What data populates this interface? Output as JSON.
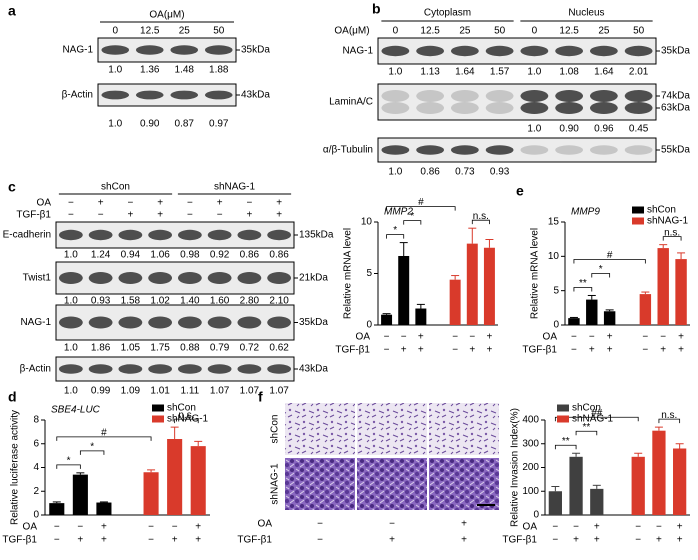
{
  "figure": {
    "a": {
      "label": "a",
      "treatment": "OA(μM)",
      "lanes": [
        "0",
        "12.5",
        "25",
        "50"
      ],
      "blots": [
        {
          "protein": "NAG-1",
          "sizes": [
            "35kDa"
          ],
          "quant": [
            "1.0",
            "1.36",
            "1.48",
            "1.88"
          ]
        },
        {
          "protein": "β-Actin",
          "sizes": [
            "43kDa"
          ],
          "quant": [
            "1.0",
            "0.90",
            "0.87",
            "0.97"
          ]
        }
      ]
    },
    "b": {
      "label": "b",
      "treatment": "OA(μM)",
      "fractions": [
        "Cytoplasm",
        "Nucleus"
      ],
      "lanes": [
        "0",
        "12.5",
        "25",
        "50",
        "0",
        "12.5",
        "25",
        "50"
      ],
      "blots": [
        {
          "protein": "NAG-1",
          "sizes": [
            "35kDa"
          ],
          "quant": [
            "1.0",
            "1.13",
            "1.64",
            "1.57",
            "1.0",
            "1.08",
            "1.64",
            "2.01"
          ]
        },
        {
          "protein": "LaminA/C",
          "sizes": [
            "74kDa",
            "63kDa"
          ],
          "quant": [
            null,
            null,
            null,
            null,
            "1.0",
            "0.90",
            "0.96",
            "0.45"
          ]
        },
        {
          "protein": "α/β-Tubulin",
          "sizes": [
            "55kDa"
          ],
          "quant": [
            "1.0",
            "0.86",
            "0.73",
            "0.93",
            null,
            null,
            null,
            null
          ]
        }
      ]
    },
    "c": {
      "label": "c",
      "groups": [
        "shCon",
        "shNAG-1"
      ],
      "conditions": [
        {
          "name": "OA",
          "marks": [
            "−",
            "+",
            "−",
            "+",
            "−",
            "+",
            "−",
            "+"
          ]
        },
        {
          "name": "TGF-β1",
          "marks": [
            "−",
            "−",
            "+",
            "+",
            "−",
            "−",
            "+",
            "+"
          ]
        }
      ],
      "blots": [
        {
          "protein": "E-cadherin",
          "sizes": [
            "135kDa"
          ],
          "quant": [
            "1.0",
            "1.24",
            "0.94",
            "1.06",
            "0.98",
            "0.92",
            "0.86",
            "0.86"
          ]
        },
        {
          "protein": "Twist1",
          "sizes": [
            "21kDa"
          ],
          "quant": [
            "1.0",
            "0.93",
            "1.58",
            "1.02",
            "1.40",
            "1.60",
            "2.80",
            "2.10"
          ]
        },
        {
          "protein": "NAG-1",
          "sizes": [
            "35kDa"
          ],
          "quant": [
            "1.0",
            "1.86",
            "1.05",
            "1.75",
            "0.88",
            "0.79",
            "0.72",
            "0.62"
          ]
        },
        {
          "protein": "β-Actin",
          "sizes": [
            "43kDa"
          ],
          "quant": [
            "1.0",
            "0.99",
            "1.09",
            "1.01",
            "1.11",
            "1.07",
            "1.07",
            "1.07"
          ]
        }
      ]
    },
    "d": {
      "label": "d"
    },
    "e": {
      "label": "e"
    },
    "f": {
      "label": "f",
      "rows": [
        "shCon",
        "shNAG-1"
      ],
      "conditions": [
        {
          "name": "OA",
          "marks": [
            "−",
            "−",
            "+"
          ]
        },
        {
          "name": "TGF-β1",
          "marks": [
            "−",
            "+",
            "+"
          ]
        }
      ]
    }
  },
  "chart_data": [
    {
      "type": "bar",
      "title": "MMP2",
      "ylabel": "Relative mRNA level",
      "ylim": [
        0,
        10
      ],
      "yticks": [
        0,
        5,
        10
      ],
      "conditions": [
        {
          "name": "OA",
          "marks": [
            "−",
            "−",
            "+",
            "−",
            "−",
            "+"
          ]
        },
        {
          "name": "TGF-β1",
          "marks": [
            "−",
            "+",
            "+",
            "−",
            "+",
            "+"
          ]
        }
      ],
      "series": [
        {
          "name": "shCon",
          "color": "#000000",
          "values": [
            1.0,
            6.7,
            1.6,
            null,
            null,
            null
          ],
          "errors": [
            0.1,
            1.3,
            0.4,
            null,
            null,
            null
          ]
        },
        {
          "name": "shNAG-1",
          "color": "#d93a2b",
          "values": [
            null,
            null,
            null,
            4.4,
            7.9,
            7.5
          ],
          "errors": [
            null,
            null,
            null,
            0.4,
            1.5,
            0.8
          ]
        }
      ],
      "annotations": [
        {
          "label": "*",
          "from": 0,
          "to": 1
        },
        {
          "label": "*",
          "from": 1,
          "to": 2
        },
        {
          "label": "#",
          "from": 0,
          "to": 3
        },
        {
          "label": "n.s.",
          "from": 4,
          "to": 5
        }
      ]
    },
    {
      "type": "bar",
      "title": "MMP9",
      "ylabel": "Relative mRNA level",
      "ylim": [
        0,
        15
      ],
      "yticks": [
        0,
        5,
        10,
        15
      ],
      "legend": "upper right",
      "conditions": [
        {
          "name": "OA",
          "marks": [
            "−",
            "−",
            "+",
            "−",
            "−",
            "+"
          ]
        },
        {
          "name": "TGF-β1",
          "marks": [
            "−",
            "+",
            "+",
            "−",
            "+",
            "+"
          ]
        }
      ],
      "series": [
        {
          "name": "shCon",
          "color": "#000000",
          "values": [
            1.0,
            3.7,
            2.0,
            null,
            null,
            null
          ],
          "errors": [
            0.1,
            0.6,
            0.2,
            null,
            null,
            null
          ]
        },
        {
          "name": "shNAG-1",
          "color": "#d93a2b",
          "values": [
            null,
            null,
            null,
            4.5,
            11.2,
            9.6
          ],
          "errors": [
            null,
            null,
            null,
            0.3,
            0.5,
            0.9
          ]
        }
      ],
      "annotations": [
        {
          "label": "**",
          "from": 0,
          "to": 1
        },
        {
          "label": "*",
          "from": 1,
          "to": 2
        },
        {
          "label": "#",
          "from": 0,
          "to": 3
        },
        {
          "label": "n.s.",
          "from": 4,
          "to": 5
        }
      ]
    },
    {
      "type": "bar",
      "title": "SBE4-LUC",
      "ylabel": "Relative luciferase activity",
      "ylim": [
        0,
        8
      ],
      "yticks": [
        0,
        2,
        4,
        6,
        8
      ],
      "legend": "upper right",
      "conditions": [
        {
          "name": "OA",
          "marks": [
            "−",
            "−",
            "+",
            "−",
            "−",
            "+"
          ]
        },
        {
          "name": "TGF-β1",
          "marks": [
            "−",
            "+",
            "+",
            "−",
            "+",
            "+"
          ]
        }
      ],
      "series": [
        {
          "name": "shCon",
          "color": "#000000",
          "values": [
            1.0,
            3.4,
            1.05,
            null,
            null,
            null
          ],
          "errors": [
            0.1,
            0.15,
            0.05,
            null,
            null,
            null
          ]
        },
        {
          "name": "shNAG-1",
          "color": "#d93a2b",
          "values": [
            null,
            null,
            null,
            3.6,
            6.4,
            5.8
          ],
          "errors": [
            null,
            null,
            null,
            0.2,
            1.0,
            0.4
          ]
        }
      ],
      "annotations": [
        {
          "label": "*",
          "from": 0,
          "to": 1
        },
        {
          "label": "*",
          "from": 1,
          "to": 2
        },
        {
          "label": "#",
          "from": 0,
          "to": 3
        },
        {
          "label": "n.s.",
          "from": 4,
          "to": 5
        }
      ]
    },
    {
      "type": "bar",
      "ylabel": "Relative Invasion Index(%)",
      "ylim": [
        0,
        400
      ],
      "yticks": [
        0,
        100,
        200,
        300,
        400
      ],
      "legend": "upper left",
      "conditions": [
        {
          "name": "OA",
          "marks": [
            "−",
            "−",
            "+",
            "−",
            "−",
            "+"
          ]
        },
        {
          "name": "TGF-β1",
          "marks": [
            "−",
            "+",
            "+",
            "−",
            "+",
            "+"
          ]
        }
      ],
      "series": [
        {
          "name": "shCon",
          "color": "#404040",
          "values": [
            100,
            245,
            110,
            null,
            null,
            null
          ],
          "errors": [
            20,
            15,
            15,
            null,
            null,
            null
          ]
        },
        {
          "name": "shNAG-1",
          "color": "#d93a2b",
          "values": [
            null,
            null,
            null,
            245,
            355,
            280
          ],
          "errors": [
            null,
            null,
            null,
            15,
            15,
            20
          ]
        }
      ],
      "annotations": [
        {
          "label": "**",
          "from": 0,
          "to": 1
        },
        {
          "label": "**",
          "from": 1,
          "to": 2
        },
        {
          "label": "##",
          "from": 0,
          "to": 3
        },
        {
          "label": "n.s.",
          "from": 4,
          "to": 5
        }
      ]
    }
  ]
}
